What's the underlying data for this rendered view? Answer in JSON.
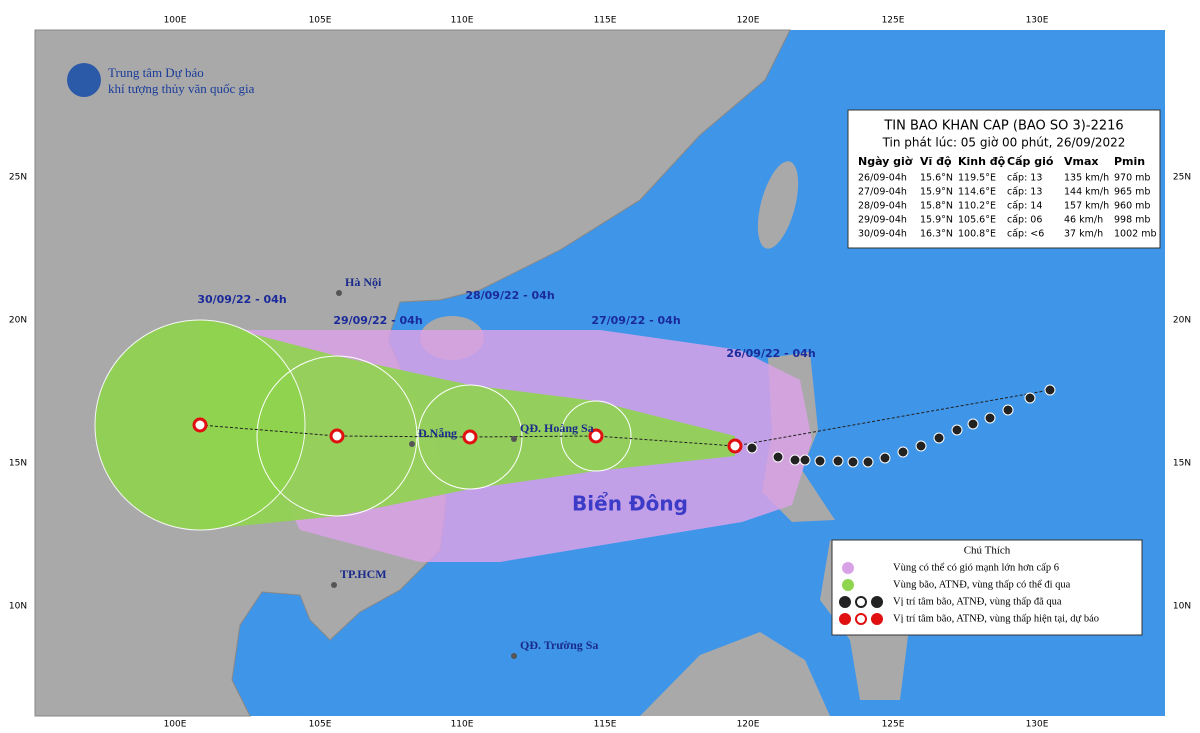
{
  "org": {
    "line1": "Trung tâm Dự báo",
    "line2": "khí tượng thủy văn quốc gia"
  },
  "bulletin": {
    "title": "TIN BAO KHAN CAP  (BAO SO 3)-2216",
    "issued": "Tin phát lúc: 05 giờ 00 phút, 26/09/2022",
    "headers": [
      "Ngày giờ",
      "Vĩ độ",
      "Kinh độ",
      "Cấp gió",
      "Vmax",
      "Pmin"
    ],
    "rows": [
      [
        "26/09-04h",
        "15.6°N",
        "119.5°E",
        "cấp: 13",
        "135 km/h",
        "970 mb"
      ],
      [
        "27/09-04h",
        "15.9°N",
        "114.6°E",
        "cấp: 13",
        "144 km/h",
        "965 mb"
      ],
      [
        "28/09-04h",
        "15.8°N",
        "110.2°E",
        "cấp: 14",
        "157 km/h",
        "960 mb"
      ],
      [
        "29/09-04h",
        "15.9°N",
        "105.6°E",
        "cấp: 06",
        "46 km/h",
        "998 mb"
      ],
      [
        "30/09-04h",
        "16.3°N",
        "100.8°E",
        "cấp: <6",
        "37 km/h",
        "1002 mb"
      ]
    ]
  },
  "lon_labels": [
    "100E",
    "105E",
    "110E",
    "115E",
    "120E",
    "125E",
    "130E"
  ],
  "lat_labels": [
    "25N",
    "20N",
    "15N",
    "10N"
  ],
  "places": [
    "Hà Nội",
    "Đ.Nẵng",
    "QĐ. Hoàng Sa",
    "TP.HCM",
    "QĐ. Trường Sa"
  ],
  "sea_name": "Biển Đông",
  "forecast_labels": [
    "30/09/22 - 04h",
    "29/09/22 - 04h",
    "28/09/22 - 04h",
    "27/09/22 - 04h",
    "26/09/22 - 04h"
  ],
  "legend": {
    "title": "Chú Thích",
    "items": [
      "Vùng có thể có gió mạnh lớn hơn cấp 6",
      "Vùng bão, ATNĐ, vùng thấp có thể đi qua",
      "Vị trí tâm bão, ATNĐ, vùng thấp đã qua",
      "Vị trí tâm bão, ATNĐ, vùng thấp hiện tại, dự báo"
    ]
  }
}
